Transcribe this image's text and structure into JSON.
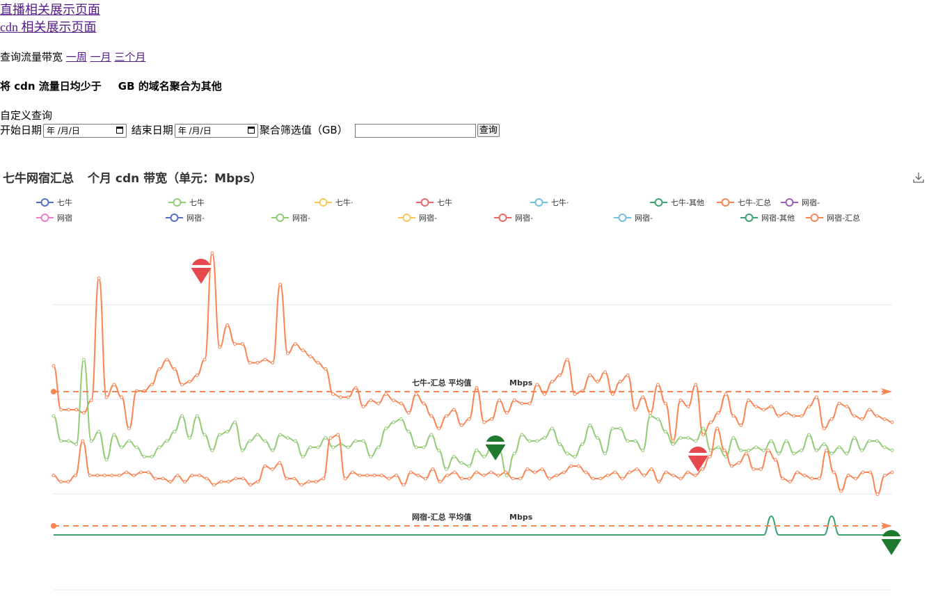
{
  "nav": {
    "live_link": "直播相关展示页面",
    "cdn_link": "cdn 相关展示页面"
  },
  "range": {
    "label": "查询流量带宽",
    "week": "一周",
    "month": "一月",
    "three_months": "三个月"
  },
  "aggregate_note": {
    "prefix": "将 cdn 流量日均少于",
    "suffix": "GB 的域名聚合为其他"
  },
  "custom": {
    "heading": "自定义查询",
    "start_label": "开始日期",
    "start_value": "年 /月/日",
    "end_label": "结束日期",
    "end_value": "年 /月/日",
    "threshold_label": "聚合筛选值（GB）",
    "threshold_value": "",
    "query_button": "查询"
  },
  "chart_title": {
    "left": "七牛网宿汇总",
    "right": "个月 cdn 带宽（单元：Mbps）"
  },
  "icons": {
    "download": "download-icon"
  },
  "legend_row1": [
    "七牛",
    "七牛",
    "七牛·",
    "七牛",
    "七牛·",
    "七牛-其他",
    "七牛-汇总",
    "网宿-"
  ],
  "legend_row2": [
    "网宿",
    "网宿-",
    "网宿-",
    "网宿-",
    "网宿-",
    "网宿-",
    "网宿-其他",
    "网宿-汇总"
  ],
  "colors": {
    "blue": "#5470c6",
    "green": "#91cc75",
    "yellow": "#fac858",
    "red": "#ee6666",
    "cyan": "#73c0de",
    "teal": "#3ba272",
    "orange": "#fc8452",
    "purple": "#9a60b4",
    "pink": "#ea7ccc",
    "max_pin": "#e5484d",
    "min_pin": "#1e7a2f"
  },
  "chart_data": {
    "type": "line",
    "title": "",
    "ylabel": "",
    "xlabel": "",
    "mark_lines": [
      {
        "series": "七牛-汇总",
        "label": "七牛-汇总 平均值",
        "unit": "Mbps"
      },
      {
        "series": "网宿-汇总",
        "label": "网宿-汇总 平均值",
        "unit": "Mbps"
      }
    ],
    "series": [
      {
        "name": "七牛-汇总",
        "values": [
          68,
          82,
          82,
          82,
          83,
          79,
          40,
          78,
          74,
          78,
          88,
          76,
          76,
          74,
          69,
          66,
          69,
          74,
          73,
          71,
          66,
          32,
          62,
          55,
          61,
          61,
          67,
          67,
          66,
          67,
          42,
          64,
          61,
          63,
          65,
          67,
          69,
          77,
          78,
          78,
          75,
          81,
          79,
          80,
          77,
          79,
          80,
          83,
          77,
          80,
          84,
          88,
          84,
          82,
          87,
          85,
          75,
          86,
          85,
          79,
          83,
          79,
          80,
          80,
          74,
          77,
          73,
          71,
          66,
          77,
          76,
          71,
          73,
          70,
          77,
          73,
          71,
          82,
          78,
          83,
          74,
          80,
          92,
          79,
          81,
          74,
          90,
          86,
          83,
          77,
          84,
          87,
          79,
          81,
          82,
          81,
          84,
          83,
          84,
          84,
          81,
          78,
          88,
          85,
          80,
          81,
          84,
          85,
          82,
          84,
          85,
          86
        ]
      },
      {
        "name": "七牛-其他",
        "values": [
          84,
          92,
          92,
          93,
          66,
          92,
          89,
          98,
          90,
          94,
          92,
          94,
          97,
          97,
          94,
          92,
          89,
          84,
          91,
          84,
          90,
          95,
          90,
          89,
          86,
          95,
          92,
          90,
          92,
          95,
          90,
          91,
          92,
          97,
          94,
          94,
          91,
          94,
          93,
          94,
          92,
          92,
          97,
          94,
          88,
          86,
          85,
          89,
          94,
          94,
          90,
          95,
          101,
          97,
          99,
          100,
          95,
          97,
          94,
          95,
          103,
          96,
          90,
          92,
          92,
          91,
          88,
          93,
          96,
          97,
          93,
          87,
          91,
          96,
          88,
          88,
          92,
          92,
          95,
          84,
          85,
          89,
          93,
          91,
          91,
          92,
          88,
          95,
          94,
          97,
          91,
          95,
          95,
          94,
          95,
          92,
          96,
          92,
          96,
          95,
          90,
          95,
          93,
          96,
          94,
          96,
          91,
          95,
          92,
          92,
          94,
          95
        ]
      },
      {
        "name": "网宿-汇总",
        "values": [
          103,
          105,
          105,
          103,
          92,
          103,
          103,
          103,
          103,
          103,
          102,
          103,
          102,
          102,
          104,
          104,
          105,
          103,
          105,
          103,
          103,
          104,
          106,
          105,
          105,
          104,
          104,
          106,
          105,
          100,
          101,
          99,
          104,
          104,
          106,
          105,
          105,
          104,
          91,
          90,
          104,
          102,
          103,
          103,
          103,
          103,
          104,
          103,
          106,
          102,
          103,
          104,
          101,
          105,
          103,
          102,
          104,
          104,
          102,
          103,
          102,
          103,
          102,
          104,
          104,
          101,
          102,
          101,
          104,
          103,
          102,
          100,
          100,
          102,
          104,
          104,
          103,
          102,
          104,
          102,
          101,
          103,
          101,
          105,
          102,
          103,
          104,
          102,
          103,
          101,
          97,
          88,
          95,
          100,
          99,
          96,
          101,
          101,
          95,
          98,
          104,
          105,
          102,
          103,
          104,
          104,
          95,
          102,
          108,
          103,
          104,
          102,
          102,
          109,
          103,
          102
        ]
      },
      {
        "name": "网宿-其他",
        "values": [
          122,
          122,
          122,
          122,
          122,
          122,
          122,
          122,
          122,
          122,
          122,
          122,
          122,
          122,
          122,
          122,
          122,
          122,
          122,
          122,
          122,
          122,
          122,
          122,
          122,
          122,
          122,
          122,
          122,
          122,
          122,
          122,
          122,
          122,
          122,
          122,
          122,
          122,
          122,
          122,
          122,
          122,
          122,
          122,
          122,
          122,
          122,
          122,
          122,
          122,
          122,
          122,
          122,
          122,
          122,
          122,
          122,
          122,
          122,
          122,
          122,
          122,
          122,
          122,
          122,
          122,
          122,
          122,
          122,
          122,
          122,
          122,
          122,
          122,
          122,
          122,
          122,
          122,
          122,
          122,
          122,
          122,
          122,
          122,
          122,
          122,
          122,
          122,
          122,
          122,
          122,
          122,
          122,
          122,
          122,
          116,
          122,
          122,
          122,
          122,
          122,
          122,
          122,
          116,
          122,
          122,
          122,
          122,
          122,
          122,
          122,
          122
        ]
      }
    ]
  }
}
